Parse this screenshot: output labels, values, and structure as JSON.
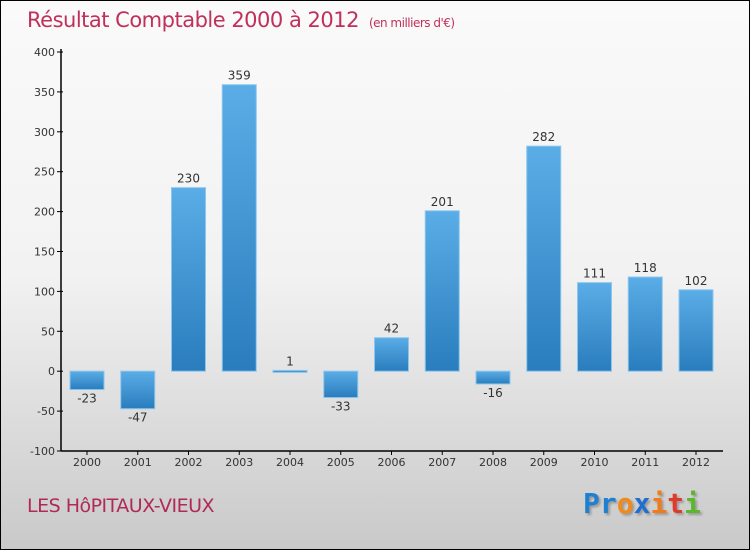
{
  "chart_data": {
    "type": "bar",
    "title": "Résultat Comptable 2000 à 2012",
    "subtitle": "(en milliers d'€)",
    "categories": [
      "2000",
      "2001",
      "2002",
      "2003",
      "2004",
      "2005",
      "2006",
      "2007",
      "2008",
      "2009",
      "2010",
      "2011",
      "2012"
    ],
    "values": [
      -23,
      -47,
      230,
      359,
      1,
      -33,
      42,
      201,
      -16,
      282,
      111,
      118,
      102
    ],
    "ylim": [
      -100,
      400
    ],
    "yticks": [
      -100,
      -50,
      0,
      50,
      100,
      150,
      200,
      250,
      300,
      350,
      400
    ],
    "xlabel": "",
    "ylabel": "",
    "grid": false,
    "bar_color": "#3d97d8"
  },
  "footer": {
    "commune": "LES HôPITAUX-VIEUX",
    "logo": "Proxiti"
  }
}
